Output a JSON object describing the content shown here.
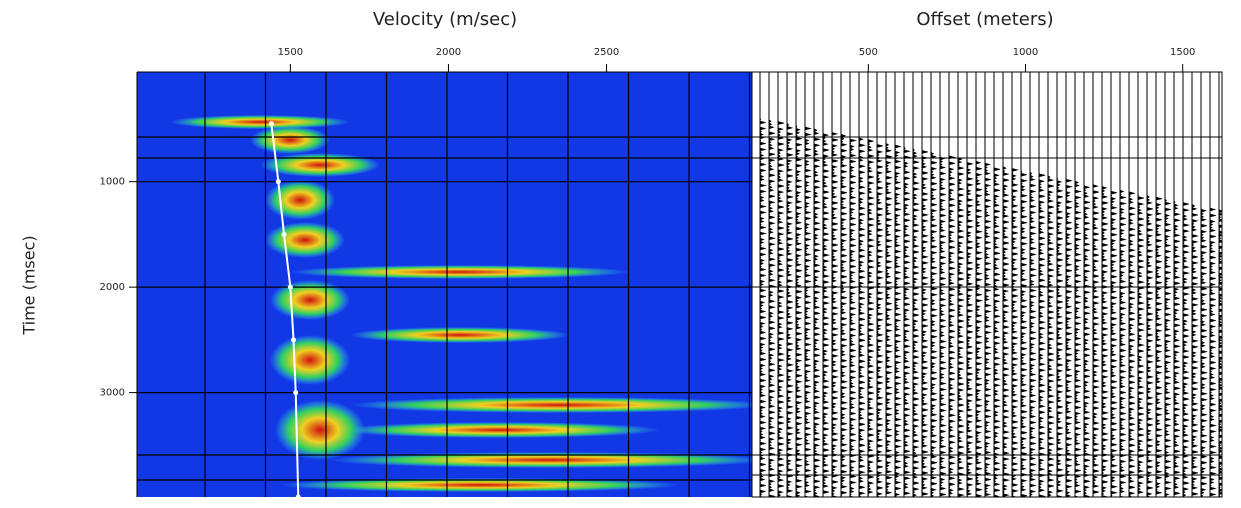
{
  "chart_data": [
    {
      "type": "semblance",
      "title": "Velocity (m/sec)",
      "ylabel": "Time (msec)",
      "xlim": [
        1015,
        2960
      ],
      "xticks": [
        1500,
        2000,
        2500
      ],
      "ylim": [
        -40,
        3990
      ],
      "yticks": [
        1000,
        2000,
        3000
      ],
      "background": "#1238e6",
      "series": [
        {
          "color": "#ffffff",
          "x": [
            1440,
            1462,
            1480,
            1500,
            1510,
            1517,
            1525
          ],
          "y": [
            450,
            1000,
            1500,
            2000,
            2500,
            3000,
            3990
          ]
        }
      ]
    },
    {
      "type": "gather",
      "title": "Offset (meters)",
      "xlim": [
        130,
        1625
      ],
      "xticks": [
        500,
        1000,
        1500
      ],
      "ylim": [
        -40,
        3990
      ]
    }
  ]
}
